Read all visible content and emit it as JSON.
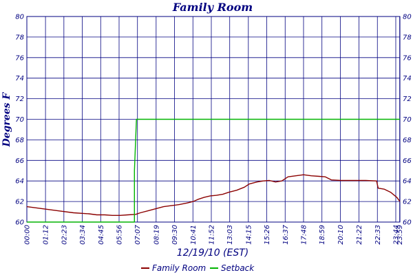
{
  "chart_data": {
    "type": "line",
    "title": "Family Room",
    "ylabel": "Degrees F",
    "xlabel": "12/19/10 (EST)",
    "ylim": [
      60,
      80
    ],
    "y_ticks": [
      60,
      62,
      64,
      66,
      68,
      70,
      72,
      74,
      76,
      78,
      80
    ],
    "x_range_hours": [
      0,
      24.0
    ],
    "x_ticks": [
      {
        "label": "00:00",
        "t": 0.0
      },
      {
        "label": "01:12",
        "t": 1.2
      },
      {
        "label": "02:23",
        "t": 2.3833
      },
      {
        "label": "03:34",
        "t": 3.5667
      },
      {
        "label": "04:45",
        "t": 4.75
      },
      {
        "label": "05:56",
        "t": 5.9333
      },
      {
        "label": "07:07",
        "t": 7.1167
      },
      {
        "label": "08:19",
        "t": 8.3167
      },
      {
        "label": "09:30",
        "t": 9.5
      },
      {
        "label": "10:41",
        "t": 10.6833
      },
      {
        "label": "11:52",
        "t": 11.8667
      },
      {
        "label": "13:03",
        "t": 13.05
      },
      {
        "label": "14:15",
        "t": 14.25
      },
      {
        "label": "15:26",
        "t": 15.4333
      },
      {
        "label": "16:37",
        "t": 16.6167
      },
      {
        "label": "17:48",
        "t": 17.8
      },
      {
        "label": "18:59",
        "t": 18.9833
      },
      {
        "label": "20:10",
        "t": 20.1667
      },
      {
        "label": "21:22",
        "t": 21.3667
      },
      {
        "label": "22:33",
        "t": 22.55
      },
      {
        "label": "23:44",
        "t": 23.7333
      },
      {
        "label": "23:59",
        "t": 23.9833
      }
    ],
    "grid": true,
    "legend_position": "bottom",
    "series": [
      {
        "name": "Family Room",
        "color": "#8b0000",
        "x": [
          0.0,
          1.0,
          2.0,
          3.0,
          4.0,
          4.5,
          5.0,
          5.5,
          6.0,
          6.5,
          7.0,
          7.3,
          7.8,
          8.3,
          8.8,
          9.3,
          9.8,
          10.3,
          10.7,
          11.0,
          11.4,
          11.8,
          12.2,
          12.6,
          13.0,
          13.5,
          14.0,
          14.3,
          14.8,
          15.2,
          15.6,
          16.0,
          16.4,
          16.8,
          17.3,
          17.8,
          18.3,
          18.8,
          19.2,
          19.6,
          20.2,
          21.0,
          21.8,
          22.5,
          22.6,
          23.0,
          23.4,
          23.8,
          24.0
        ],
        "y": [
          61.5,
          61.3,
          61.1,
          60.9,
          60.8,
          60.7,
          60.7,
          60.65,
          60.65,
          60.7,
          60.75,
          60.9,
          61.1,
          61.3,
          61.5,
          61.6,
          61.7,
          61.85,
          62.0,
          62.2,
          62.4,
          62.55,
          62.6,
          62.7,
          62.9,
          63.1,
          63.4,
          63.7,
          63.9,
          64.0,
          64.05,
          63.9,
          64.0,
          64.4,
          64.5,
          64.6,
          64.5,
          64.45,
          64.4,
          64.1,
          64.05,
          64.05,
          64.05,
          64.0,
          63.3,
          63.2,
          62.9,
          62.4,
          62.0
        ]
      },
      {
        "name": "Setback",
        "color": "#00b400",
        "x": [
          0.0,
          6.92,
          6.92,
          7.05,
          24.0
        ],
        "y": [
          60.0,
          60.0,
          65.0,
          70.0,
          70.0
        ]
      }
    ]
  }
}
